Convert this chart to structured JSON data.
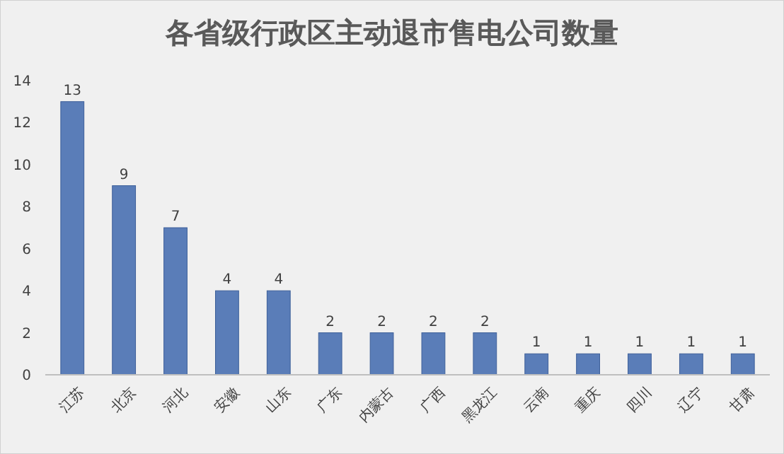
{
  "chart_data": {
    "type": "bar",
    "title": "各省级行政区主动退市售电公司数量",
    "categories": [
      "江苏",
      "北京",
      "河北",
      "安徽",
      "山东",
      "广东",
      "内蒙古",
      "广西",
      "黑龙江",
      "云南",
      "重庆",
      "四川",
      "辽宁",
      "甘肃"
    ],
    "values": [
      13,
      9,
      7,
      4,
      4,
      2,
      2,
      2,
      2,
      1,
      1,
      1,
      1,
      1
    ],
    "color": "#5a7db8",
    "ylim": [
      0,
      14
    ],
    "yticks": [
      0,
      2,
      4,
      6,
      8,
      10,
      12,
      14
    ],
    "grid": false,
    "data_labels": true
  }
}
